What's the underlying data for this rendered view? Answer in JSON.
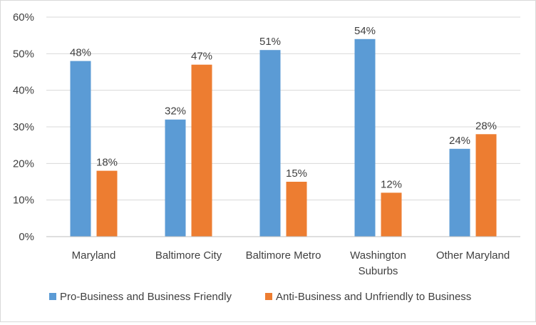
{
  "chart_data": {
    "type": "bar",
    "title": "",
    "xlabel": "",
    "ylabel": "",
    "categories": [
      [
        "Maryland"
      ],
      [
        "Baltimore City"
      ],
      [
        "Baltimore Metro"
      ],
      [
        "Washington",
        "Suburbs"
      ],
      [
        "Other Maryland"
      ]
    ],
    "series": [
      {
        "name": "Pro-Business and Business Friendly",
        "color": "#5b9bd5",
        "values": [
          48,
          32,
          51,
          54,
          24
        ],
        "labels": [
          "48%",
          "32%",
          "51%",
          "54%",
          "24%"
        ]
      },
      {
        "name": "Anti-Business and Unfriendly to Business",
        "color": "#ed7d31",
        "values": [
          18,
          47,
          15,
          12,
          28
        ],
        "labels": [
          "18%",
          "47%",
          "15%",
          "12%",
          "28%"
        ]
      }
    ],
    "ylim": [
      0,
      60
    ],
    "yticks": [
      0,
      10,
      20,
      30,
      40,
      50,
      60
    ],
    "ytick_labels": [
      "0%",
      "10%",
      "20%",
      "30%",
      "40%",
      "50%",
      "60%"
    ],
    "grid": true,
    "legend_position": "bottom"
  }
}
